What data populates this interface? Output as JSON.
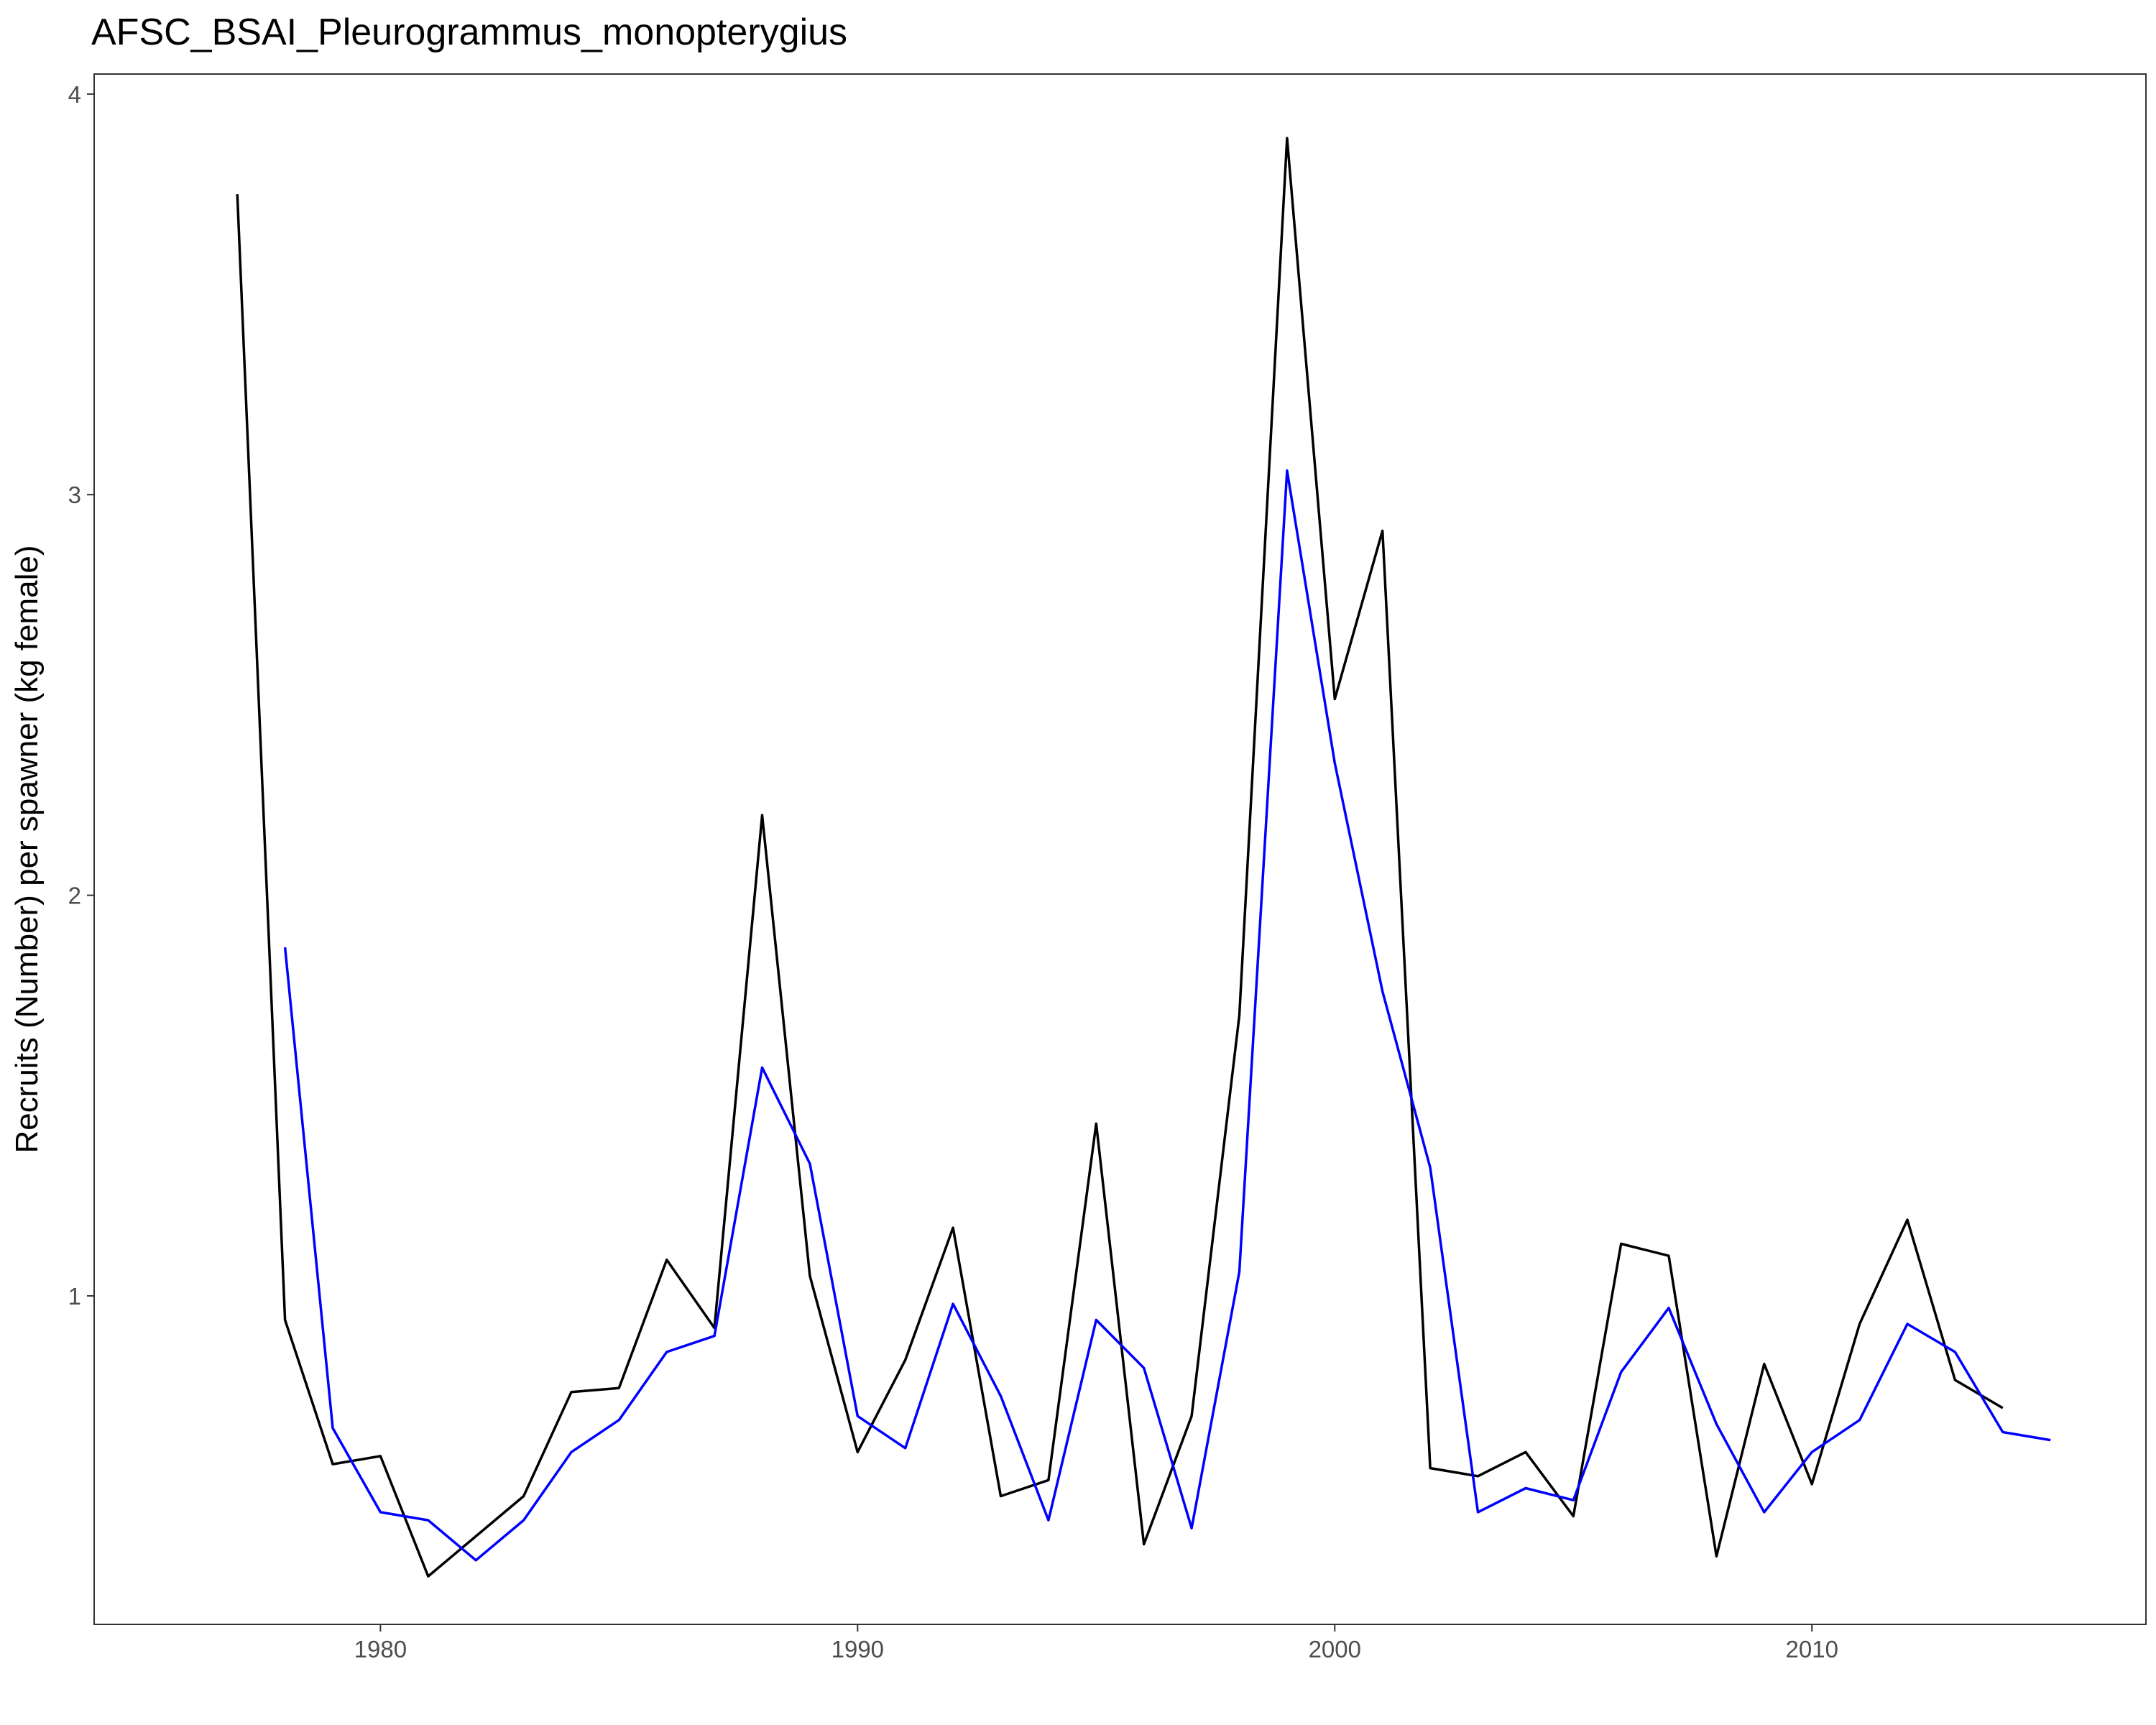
{
  "chart_data": {
    "type": "line",
    "title": "AFSC_BSAI_Pleurogrammus_monopterygius",
    "xlabel": "",
    "ylabel": "Recruits (Number) per spawner (kg female)",
    "xlim": [
      1974.0,
      2017.0
    ],
    "ylim": [
      0.18,
      4.05
    ],
    "x_ticks": [
      1980,
      1990,
      2000,
      2010
    ],
    "x_tick_labels": [
      "1980",
      "1990",
      "2000",
      "2010"
    ],
    "y_ticks": [
      1,
      2,
      3,
      4
    ],
    "y_tick_labels": [
      "1",
      "2",
      "3",
      "4"
    ],
    "grid": false,
    "legend": "none",
    "series": [
      {
        "color": "#000000",
        "x": [
          1977,
          1978,
          1979,
          1980,
          1981,
          1982,
          1983,
          1984,
          1985,
          1986,
          1987,
          1988,
          1989,
          1990,
          1991,
          1992,
          1993,
          1994,
          1995,
          1996,
          1997,
          1998,
          1999,
          2000,
          2001,
          2002,
          2003,
          2004,
          2005,
          2006,
          2007,
          2008,
          2009,
          2010,
          2011,
          2012,
          2013,
          2014
        ],
        "y": [
          3.75,
          0.94,
          0.58,
          0.6,
          0.3,
          0.4,
          0.5,
          0.76,
          0.77,
          1.09,
          0.92,
          2.2,
          1.05,
          0.61,
          0.84,
          1.17,
          0.5,
          0.54,
          1.43,
          0.38,
          0.7,
          1.7,
          3.89,
          2.49,
          2.91,
          0.57,
          0.55,
          0.61,
          0.45,
          1.13,
          1.1,
          0.35,
          0.83,
          0.53,
          0.93,
          1.19,
          0.79,
          0.72
        ]
      },
      {
        "color": "#0000ff",
        "x": [
          1978,
          1979,
          1980,
          1981,
          1982,
          1983,
          1984,
          1985,
          1986,
          1987,
          1988,
          1989,
          1990,
          1991,
          1992,
          1993,
          1994,
          1995,
          1996,
          1997,
          1998,
          1999,
          2000,
          2001,
          2002,
          2003,
          2004,
          2005,
          2006,
          2007,
          2008,
          2009,
          2010,
          2011,
          2012,
          2013,
          2014,
          2015
        ],
        "y": [
          1.87,
          0.67,
          0.46,
          0.44,
          0.34,
          0.44,
          0.61,
          0.69,
          0.86,
          0.9,
          1.57,
          1.33,
          0.7,
          0.62,
          0.98,
          0.75,
          0.44,
          0.94,
          0.82,
          0.42,
          1.06,
          3.06,
          2.33,
          1.76,
          1.32,
          0.46,
          0.52,
          0.49,
          0.81,
          0.97,
          0.68,
          0.46,
          0.61,
          0.69,
          0.93,
          0.86,
          0.66,
          0.64
        ]
      }
    ]
  }
}
